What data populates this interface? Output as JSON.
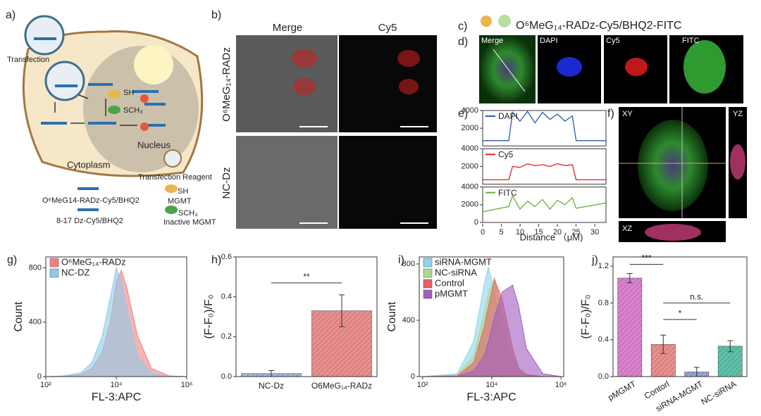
{
  "panel_labels": [
    "a)",
    "b)",
    "c)",
    "d)",
    "e)",
    "f)",
    "g)",
    "h)",
    "i)",
    "j)"
  ],
  "panel_a": {
    "texts": [
      "Transfection",
      "SH",
      "SCH₃",
      "Nucleus",
      "Cytoplasm",
      "Transfection Reagent",
      "O⁶MeG14-RADz-Cy5/BHQ2",
      "SH",
      "MGMT",
      "8-17 Dz-Cy5/BHQ2",
      "SCH₃",
      "Inactive MGMT"
    ]
  },
  "panel_b": {
    "columns": [
      "Merge",
      "Cy5"
    ],
    "rows": [
      "O⁶MeG₁₄-RADz",
      "NC-Dz"
    ]
  },
  "panel_c": {
    "title": "O⁶MeG₁₄-RADz-Cy5/BHQ2-FITC"
  },
  "panel_d": {
    "channels": [
      "Merge",
      "DAPI",
      "Cy5",
      "FITC"
    ]
  },
  "panel_f": {
    "views": [
      "XY",
      "YZ",
      "XZ"
    ]
  },
  "chart_data": [
    {
      "type": "line",
      "x_label": "Distance （μM)",
      "x": [
        0,
        7,
        8,
        10,
        12,
        14,
        16,
        18,
        20,
        22,
        24,
        25,
        33
      ],
      "xlim": [
        0,
        33
      ],
      "xticks": [
        0,
        5,
        10,
        15,
        20,
        25,
        30
      ],
      "series": [
        {
          "name": "DAPI",
          "color": "#2a5caa",
          "ylim": [
            0,
            4000
          ],
          "yticks": [
            2000,
            4000
          ],
          "values": [
            600,
            600,
            3800,
            2800,
            3900,
            2600,
            3800,
            3000,
            3600,
            2800,
            3400,
            600,
            600
          ]
        },
        {
          "name": "Cy5",
          "color": "#e02020",
          "ylim": [
            0,
            4000
          ],
          "yticks": [
            2000,
            4000
          ],
          "values": [
            500,
            500,
            2000,
            1900,
            2300,
            2100,
            2200,
            2000,
            2300,
            2100,
            2200,
            500,
            500
          ]
        },
        {
          "name": "FITC",
          "color": "#6ab034",
          "ylim": [
            0,
            4000
          ],
          "yticks": [
            0,
            2000,
            4000
          ],
          "values": [
            1200,
            1800,
            3000,
            1500,
            2400,
            1800,
            2600,
            1500,
            2500,
            2000,
            2800,
            1600,
            2200
          ]
        }
      ]
    },
    {
      "type": "area",
      "x_label": "FL-3:APC",
      "y_label": "Count",
      "log_x": true,
      "xlim": [
        100,
        1000000
      ],
      "xticks": [
        {
          "value": 100,
          "label": "10²"
        },
        {
          "value": 10000,
          "label": "10⁴"
        },
        {
          "value": 1000000,
          "label": "10⁶"
        }
      ],
      "ylim": [
        0,
        880
      ],
      "yticks": [
        0,
        400,
        800
      ],
      "x": [
        100,
        316,
        1000,
        2000,
        4000,
        7000,
        10000,
        14000,
        20000,
        40000,
        100000,
        316000,
        1000000
      ],
      "series": [
        {
          "name": "O⁶MeG₁₄-RADz",
          "color": "#f08080",
          "values": [
            0,
            2,
            15,
            60,
            180,
            420,
            700,
            780,
            650,
            300,
            60,
            5,
            0
          ]
        },
        {
          "name": "NC-DZ",
          "color": "#8ccbe8",
          "values": [
            0,
            5,
            30,
            100,
            300,
            600,
            800,
            700,
            500,
            150,
            20,
            2,
            0
          ]
        }
      ]
    },
    {
      "type": "bar",
      "y_label": "(F-F₀)/F₀",
      "categories": [
        "NC-Dz",
        "O6MeG₁₄-RADz"
      ],
      "values": [
        0.015,
        0.33
      ],
      "errors": [
        0.015,
        0.08
      ],
      "colors": [
        "#9bbbe0",
        "#eb8f8f"
      ],
      "ylim": [
        0,
        0.6
      ],
      "yticks": [
        {
          "value": 0,
          "label": "0.0"
        },
        0.2,
        0.4,
        0.6
      ],
      "annotations": [
        "**"
      ]
    },
    {
      "type": "area",
      "x_label": "FL-3:APC",
      "y_label": "Count",
      "log_x": true,
      "xlim": [
        80,
        1200000
      ],
      "xticks": [
        {
          "value": 100,
          "label": "10²"
        },
        {
          "value": 10000,
          "label": "10⁴"
        },
        {
          "value": 1000000,
          "label": "10⁶"
        }
      ],
      "ylim": [
        0,
        850
      ],
      "yticks": [
        0,
        400,
        800
      ],
      "x": [
        100,
        1000,
        3000,
        6000,
        8000,
        12000,
        20000,
        40000,
        60000,
        100000,
        300000,
        1000000
      ],
      "series": [
        {
          "name": "siRNA-MGMT",
          "color": "#8fd3ef",
          "values": [
            0,
            20,
            250,
            650,
            780,
            600,
            300,
            60,
            20,
            5,
            0,
            0
          ]
        },
        {
          "name": "NC-siRNA",
          "color": "#a8dc8c",
          "values": [
            0,
            10,
            150,
            450,
            600,
            700,
            450,
            150,
            40,
            10,
            0,
            0
          ]
        },
        {
          "name": "Control",
          "color": "#e86060",
          "values": [
            0,
            5,
            100,
            350,
            500,
            690,
            550,
            200,
            60,
            15,
            0,
            0
          ]
        },
        {
          "name": "pMGMT",
          "color": "#a05cc0",
          "values": [
            0,
            2,
            40,
            150,
            250,
            420,
            600,
            650,
            500,
            200,
            20,
            0
          ]
        }
      ]
    },
    {
      "type": "bar",
      "y_label": "(F-F₀)/F₀",
      "categories": [
        "pMGMT",
        "Contorl",
        "siRNA-MGMT",
        "NC-siRNA"
      ],
      "values": [
        1.07,
        0.35,
        0.05,
        0.33
      ],
      "errors": [
        0.05,
        0.1,
        0.05,
        0.06
      ],
      "colors": [
        "#dc82cf",
        "#eb8f8f",
        "#93a6dc",
        "#5fc2a8"
      ],
      "ylim": [
        0,
        1.3
      ],
      "yticks": [
        {
          "value": 0,
          "label": "0.0"
        },
        0.4,
        0.8,
        1.2
      ],
      "annotations": [
        "***",
        "*",
        "n.s."
      ]
    }
  ]
}
